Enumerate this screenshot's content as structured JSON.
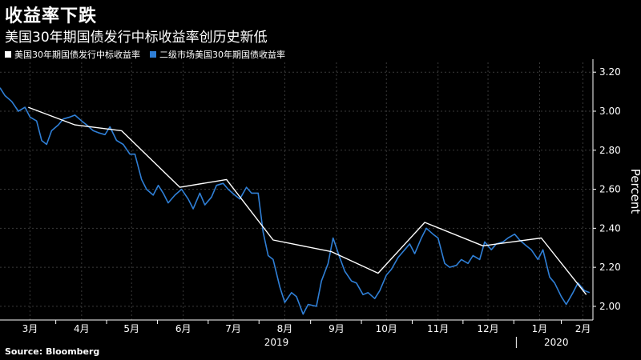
{
  "title": "收益率下跌",
  "subtitle": "美国30年期国债发行中标收益率创历史新低",
  "source": "Source: Bloomberg",
  "colors": {
    "background": "#000000",
    "auction": "#ffffff",
    "secondary": "#2f7fd6",
    "text": "#ffffff"
  },
  "chart_data": {
    "type": "line",
    "ylabel": "Percent",
    "ylim": [
      1.93,
      3.25
    ],
    "yticks": [
      2.0,
      2.2,
      2.4,
      2.6,
      2.8,
      3.0,
      3.2
    ],
    "ytick_labels": [
      "2.00",
      "2.20",
      "2.40",
      "2.60",
      "2.80",
      "3.00",
      "3.20"
    ],
    "xlim": [
      "2019-02-25",
      "2020-02-16"
    ],
    "month_ticks": [
      {
        "label": "3月",
        "date": "2019-03-15"
      },
      {
        "label": "4月",
        "date": "2019-04-15"
      },
      {
        "label": "5月",
        "date": "2019-05-15"
      },
      {
        "label": "6月",
        "date": "2019-06-15"
      },
      {
        "label": "7月",
        "date": "2019-07-15"
      },
      {
        "label": "8月",
        "date": "2019-08-15"
      },
      {
        "label": "9月",
        "date": "2019-09-15"
      },
      {
        "label": "10月",
        "date": "2019-10-15"
      },
      {
        "label": "11月",
        "date": "2019-11-15"
      },
      {
        "label": "12月",
        "date": "2019-12-15"
      },
      {
        "label": "1月",
        "date": "2020-01-15"
      },
      {
        "label": "2月",
        "date": "2020-02-10"
      }
    ],
    "year_labels": [
      {
        "label": "2019",
        "date": "2019-08-10"
      },
      {
        "label": "2020",
        "date": "2020-01-25"
      }
    ],
    "year_divider_date": "2020-01-01",
    "grid": true,
    "legend_placement": "top-left",
    "series": [
      {
        "name": "美国30年期国债发行中标收益率",
        "color": "#ffffff",
        "x": [
          "2019-03-14",
          "2019-04-11",
          "2019-05-09",
          "2019-06-13",
          "2019-07-11",
          "2019-08-08",
          "2019-09-12",
          "2019-10-10",
          "2019-11-07",
          "2019-12-12",
          "2020-01-16",
          "2020-02-12"
        ],
        "values": [
          3.02,
          2.93,
          2.9,
          2.61,
          2.65,
          2.34,
          2.28,
          2.17,
          2.43,
          2.31,
          2.35,
          2.06
        ]
      },
      {
        "name": "二级市场美国30年期国债收益率",
        "color": "#2f7fd6",
        "x": [
          "2019-02-25",
          "2019-02-28",
          "2019-03-04",
          "2019-03-08",
          "2019-03-12",
          "2019-03-15",
          "2019-03-19",
          "2019-03-22",
          "2019-03-25",
          "2019-03-28",
          "2019-04-01",
          "2019-04-04",
          "2019-04-08",
          "2019-04-11",
          "2019-04-15",
          "2019-04-18",
          "2019-04-22",
          "2019-04-25",
          "2019-04-29",
          "2019-05-02",
          "2019-05-06",
          "2019-05-10",
          "2019-05-14",
          "2019-05-17",
          "2019-05-21",
          "2019-05-24",
          "2019-05-28",
          "2019-05-31",
          "2019-06-03",
          "2019-06-06",
          "2019-06-10",
          "2019-06-14",
          "2019-06-18",
          "2019-06-21",
          "2019-06-25",
          "2019-06-28",
          "2019-07-02",
          "2019-07-05",
          "2019-07-09",
          "2019-07-12",
          "2019-07-16",
          "2019-07-19",
          "2019-07-23",
          "2019-07-26",
          "2019-07-30",
          "2019-08-02",
          "2019-08-05",
          "2019-08-08",
          "2019-08-12",
          "2019-08-15",
          "2019-08-19",
          "2019-08-22",
          "2019-08-26",
          "2019-08-29",
          "2019-09-03",
          "2019-09-06",
          "2019-09-10",
          "2019-09-13",
          "2019-09-17",
          "2019-09-20",
          "2019-09-24",
          "2019-09-27",
          "2019-10-01",
          "2019-10-04",
          "2019-10-08",
          "2019-10-11",
          "2019-10-15",
          "2019-10-18",
          "2019-10-22",
          "2019-10-25",
          "2019-10-29",
          "2019-11-01",
          "2019-11-05",
          "2019-11-08",
          "2019-11-12",
          "2019-11-15",
          "2019-11-19",
          "2019-11-22",
          "2019-11-26",
          "2019-11-29",
          "2019-12-03",
          "2019-12-06",
          "2019-12-10",
          "2019-12-13",
          "2019-12-17",
          "2019-12-20",
          "2019-12-24",
          "2019-12-27",
          "2019-12-31",
          "2020-01-03",
          "2020-01-07",
          "2020-01-10",
          "2020-01-14",
          "2020-01-17",
          "2020-01-21",
          "2020-01-24",
          "2020-01-28",
          "2020-01-31",
          "2020-02-04",
          "2020-02-07",
          "2020-02-11",
          "2020-02-14"
        ],
        "values": [
          3.12,
          3.08,
          3.05,
          3.0,
          3.02,
          2.97,
          2.95,
          2.85,
          2.83,
          2.9,
          2.93,
          2.96,
          2.97,
          2.98,
          2.95,
          2.93,
          2.9,
          2.89,
          2.88,
          2.92,
          2.85,
          2.83,
          2.78,
          2.78,
          2.65,
          2.6,
          2.57,
          2.62,
          2.58,
          2.53,
          2.57,
          2.6,
          2.55,
          2.5,
          2.58,
          2.52,
          2.56,
          2.62,
          2.63,
          2.6,
          2.57,
          2.55,
          2.61,
          2.58,
          2.58,
          2.38,
          2.26,
          2.24,
          2.1,
          2.02,
          2.07,
          2.05,
          1.96,
          2.01,
          2.0,
          2.13,
          2.22,
          2.35,
          2.25,
          2.18,
          2.13,
          2.12,
          2.06,
          2.07,
          2.04,
          2.08,
          2.16,
          2.19,
          2.25,
          2.28,
          2.32,
          2.27,
          2.35,
          2.4,
          2.37,
          2.35,
          2.22,
          2.2,
          2.21,
          2.24,
          2.22,
          2.26,
          2.24,
          2.33,
          2.29,
          2.32,
          2.33,
          2.35,
          2.37,
          2.34,
          2.31,
          2.29,
          2.24,
          2.29,
          2.15,
          2.12,
          2.05,
          2.01,
          2.07,
          2.12,
          2.08,
          2.07
        ]
      }
    ]
  }
}
